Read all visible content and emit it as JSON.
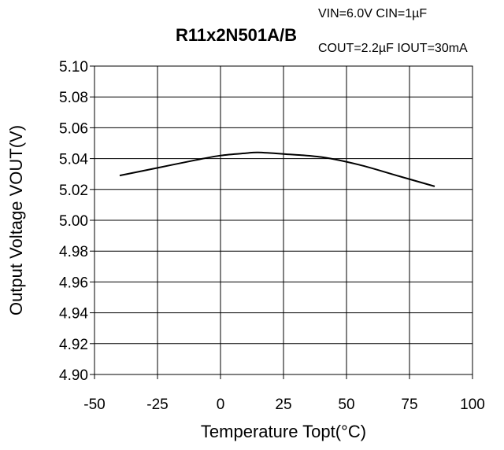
{
  "chart_data": {
    "type": "line",
    "title": "R11x2N501A/B",
    "conditions": {
      "line1": "VIN=6.0V CIN=1µF",
      "line2": "COUT=2.2µF IOUT=30mA"
    },
    "xlabel": "Temperature Topt(°C)",
    "ylabel": "Output Voltage VOUT(V)",
    "xlim": [
      -50,
      100
    ],
    "ylim": [
      4.9,
      5.1
    ],
    "xticks": [
      -50,
      -25,
      0,
      25,
      50,
      75,
      100
    ],
    "yticks": [
      4.9,
      4.92,
      4.94,
      4.96,
      4.98,
      5.0,
      5.02,
      5.04,
      5.06,
      5.08,
      5.1
    ],
    "xtick_labels": [
      "-50",
      "-25",
      "0",
      "25",
      "50",
      "75",
      "100"
    ],
    "ytick_labels": [
      "4.90",
      "4.92",
      "4.94",
      "4.96",
      "4.98",
      "5.00",
      "5.02",
      "5.04",
      "5.06",
      "5.08",
      "5.10"
    ],
    "grid": true,
    "series": [
      {
        "x": [
          -40,
          -25,
          -10,
          0,
          10,
          15,
          25,
          40,
          55,
          70,
          85
        ],
        "values": [
          5.029,
          5.034,
          5.039,
          5.042,
          5.0435,
          5.044,
          5.043,
          5.041,
          5.036,
          5.029,
          5.022
        ]
      }
    ]
  }
}
